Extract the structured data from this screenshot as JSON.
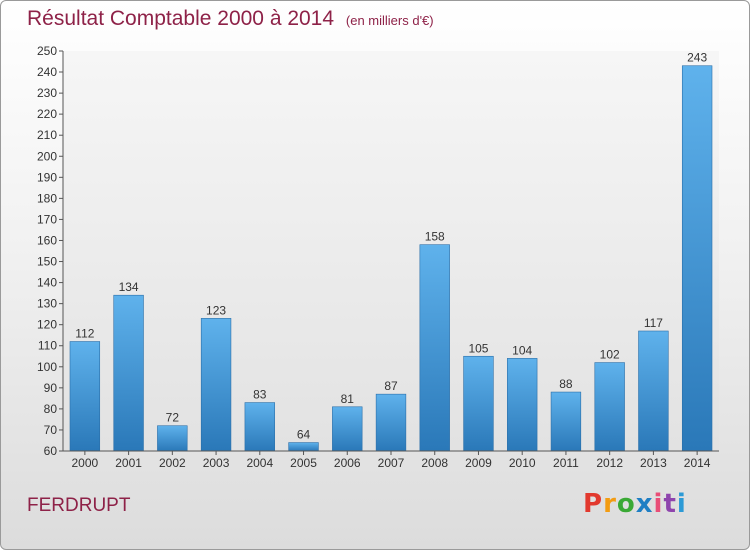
{
  "header": {
    "title": "Résultat Comptable 2000 à 2014",
    "subtitle": "(en milliers d'€)"
  },
  "footer": {
    "commune": "FERDRUPT",
    "logo_letters": [
      "P",
      "r",
      "o",
      "x",
      "i",
      "t",
      "i"
    ]
  },
  "colors": {
    "title": "#8e2248",
    "bar_light": "#5fb2ec",
    "bar_dark": "#2a78b8",
    "logo": [
      "#e2392e",
      "#f39c12",
      "#3aa935",
      "#1f7fc4",
      "#e94e77",
      "#8e44ad",
      "#2c9ad6"
    ]
  },
  "chart_data": {
    "type": "bar",
    "title": "Résultat Comptable 2000 à 2014",
    "subtitle": "(en milliers d'€)",
    "categories": [
      "2000",
      "2001",
      "2002",
      "2003",
      "2004",
      "2005",
      "2006",
      "2007",
      "2008",
      "2009",
      "2010",
      "2011",
      "2012",
      "2013",
      "2014"
    ],
    "values": [
      112,
      134,
      72,
      123,
      83,
      64,
      81,
      87,
      158,
      105,
      104,
      88,
      102,
      117,
      243
    ],
    "ylim": [
      60,
      250
    ],
    "ytick_step": 10,
    "grid": false,
    "legend": "none"
  }
}
